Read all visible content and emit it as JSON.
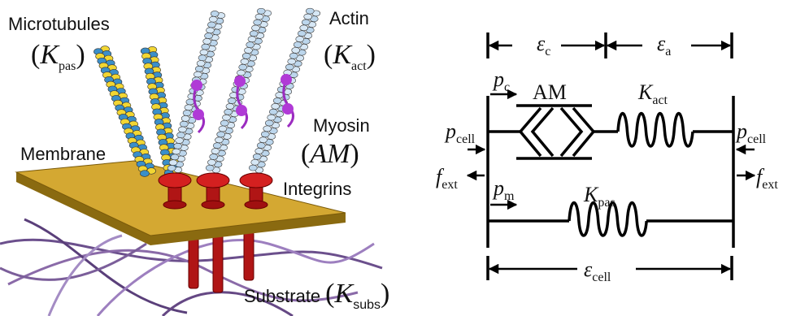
{
  "illustration": {
    "microtubules": {
      "name": "Microtubules",
      "open": "(",
      "symbol": "K",
      "sub": "pas",
      "close": ")"
    },
    "actin": {
      "name": "Actin",
      "open": "(",
      "symbol": "K",
      "sub": "act",
      "close": ")"
    },
    "myosin": {
      "name": "Myosin",
      "open": "(",
      "symbol": "AM",
      "close": ")"
    },
    "membrane": "Membrane",
    "integrins": "Integrins",
    "substrate": {
      "name": "Substrate",
      "open": "(",
      "symbol": "K",
      "sub": "subs",
      "close": ")"
    }
  },
  "model": {
    "strain_c": {
      "symbol": "ε",
      "sub": "c"
    },
    "strain_a": {
      "symbol": "ε",
      "sub": "a"
    },
    "p_c": {
      "symbol": "p",
      "sub": "c"
    },
    "am": "AM",
    "k_act": {
      "symbol": "K",
      "sub": "act"
    },
    "p_cell_left": {
      "symbol": "p",
      "sub": "cell"
    },
    "p_cell_right": {
      "symbol": "p",
      "sub": "cell"
    },
    "f_ext_left": {
      "symbol": "f",
      "sub": "ext"
    },
    "f_ext_right": {
      "symbol": "f",
      "sub": "ext"
    },
    "p_m": {
      "symbol": "p",
      "sub": "m"
    },
    "k_pas": {
      "symbol": "K",
      "sub": "pas"
    },
    "strain_cell": {
      "symbol": "ε",
      "sub": "cell"
    }
  }
}
